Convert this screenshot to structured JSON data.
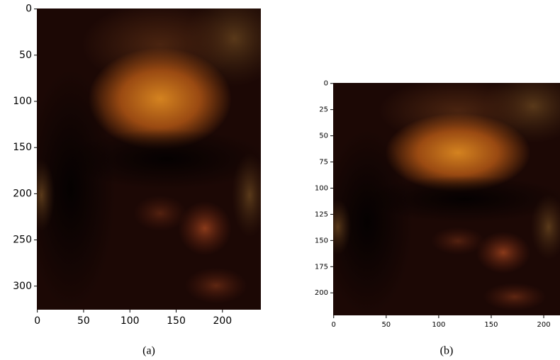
{
  "chart_data": [
    {
      "type": "image",
      "caption": "(a)",
      "xlim": [
        -0.5,
        241.5
      ],
      "ylim": [
        325.5,
        -0.5
      ],
      "xticks": [
        0,
        50,
        100,
        150,
        200
      ],
      "yticks": [
        0,
        50,
        100,
        150,
        200,
        250,
        300
      ]
    },
    {
      "type": "image",
      "caption": "(b)",
      "xlim": [
        -0.5,
        215.5
      ],
      "ylim": [
        221.5,
        -0.5
      ],
      "xticks": [
        0,
        50,
        100,
        150,
        200
      ],
      "yticks": [
        0,
        25,
        50,
        75,
        100,
        125,
        150,
        175,
        200
      ]
    }
  ]
}
